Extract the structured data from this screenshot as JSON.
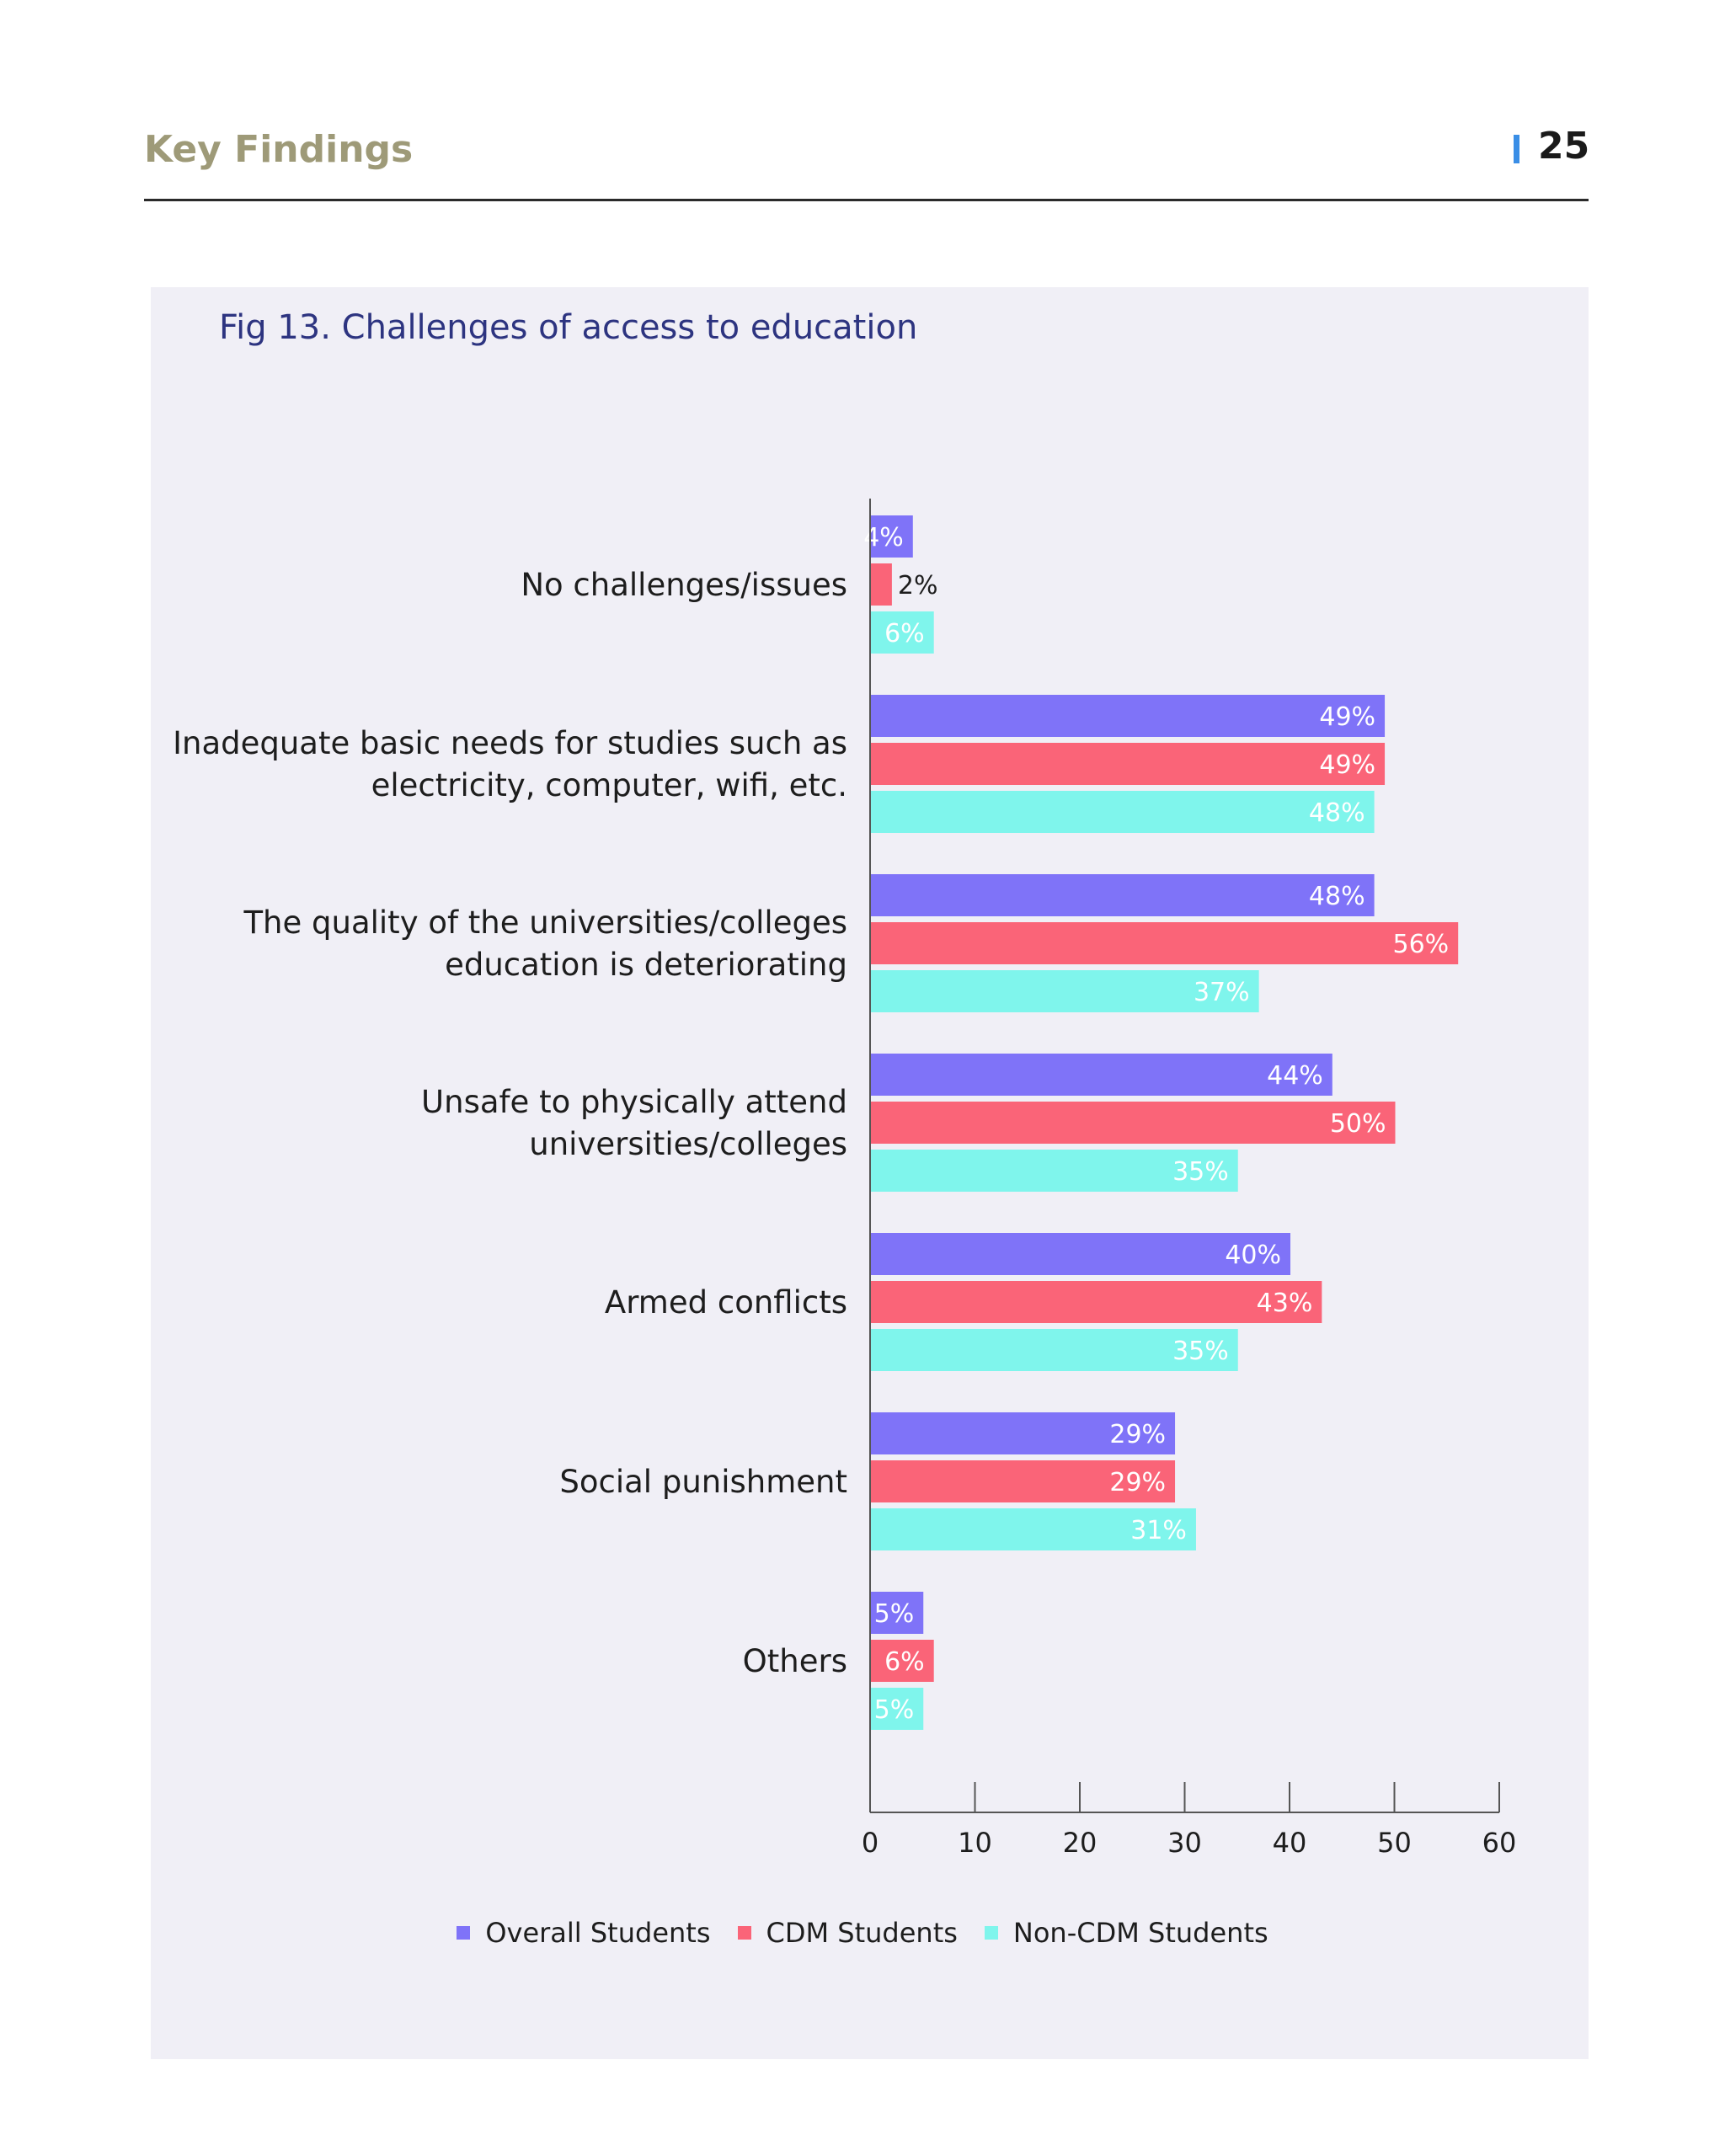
{
  "header": {
    "title": "Key Findings",
    "page_number": "25"
  },
  "figure": {
    "title": "Fig 13. Challenges of access to education"
  },
  "chart_data": {
    "type": "bar",
    "orientation": "horizontal",
    "title": "Fig 13. Challenges of access to education",
    "categories": [
      [
        "No challenges/issues"
      ],
      [
        "Inadequate basic needs for studies such as",
        "electricity, computer, wifi, etc."
      ],
      [
        "The quality of the universities/colleges",
        "education is deteriorating"
      ],
      [
        "Unsafe to physically attend",
        "universities/colleges"
      ],
      [
        "Armed conflicts"
      ],
      [
        "Social punishment"
      ],
      [
        "Others"
      ]
    ],
    "series": [
      {
        "name": "Overall Students",
        "color": "#7f73f8",
        "values": [
          4,
          49,
          48,
          44,
          40,
          29,
          5
        ]
      },
      {
        "name": "CDM Students",
        "color": "#fa6478",
        "values": [
          2,
          49,
          56,
          50,
          43,
          29,
          6
        ]
      },
      {
        "name": "Non-CDM Students",
        "color": "#7ff5ec",
        "values": [
          6,
          48,
          37,
          35,
          35,
          31,
          5
        ]
      }
    ],
    "value_suffix": "%",
    "xlim": [
      0,
      60
    ],
    "xticks": [
      0,
      10,
      20,
      30,
      40,
      50,
      60
    ],
    "grid": false,
    "legend_position": "bottom"
  }
}
